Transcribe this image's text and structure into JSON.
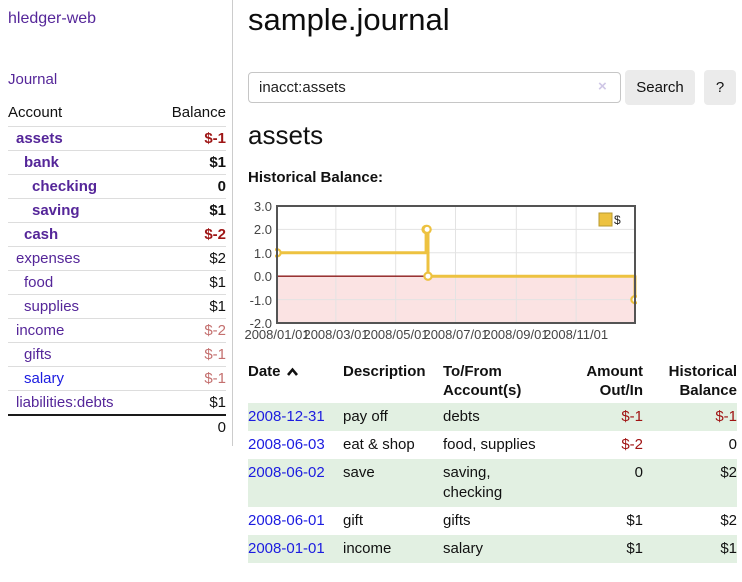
{
  "app": {
    "brand": "hledger-web",
    "nav_journal": "Journal"
  },
  "sidebar": {
    "headers": {
      "account": "Account",
      "balance": "Balance"
    },
    "accounts": [
      {
        "label": "assets",
        "indent": 1,
        "bold": true,
        "balance": "$-1"
      },
      {
        "label": "bank",
        "indent": 2,
        "bold": true,
        "balance": "$1"
      },
      {
        "label": "checking",
        "indent": 3,
        "bold": true,
        "balance": "0"
      },
      {
        "label": "saving",
        "indent": 3,
        "bold": true,
        "balance": "$1"
      },
      {
        "label": "cash",
        "indent": 2,
        "bold": true,
        "balance": "$-2"
      },
      {
        "label": "expenses",
        "indent": 1,
        "bold": false,
        "balance": "$2"
      },
      {
        "label": "food",
        "indent": 2,
        "bold": false,
        "balance": "$1"
      },
      {
        "label": "supplies",
        "indent": 2,
        "bold": false,
        "balance": "$1"
      },
      {
        "label": "income",
        "indent": 1,
        "bold": false,
        "balance": "$-2"
      },
      {
        "label": "gifts",
        "indent": 2,
        "bold": false,
        "balance": "$-1"
      },
      {
        "label": "salary",
        "indent": 2,
        "bold": false,
        "balance": "$-1",
        "unvisited": true
      },
      {
        "label": "liabilities:debts",
        "indent": 1,
        "bold": false,
        "balance": "$1"
      }
    ],
    "total": "0"
  },
  "header": {
    "title": "sample.journal"
  },
  "search": {
    "value": "inacct:assets",
    "clear_icon": "×",
    "button_label": "Search",
    "help_label": "?"
  },
  "account_page": {
    "heading": "assets",
    "chart_label": "Historical Balance:"
  },
  "chart_data": {
    "type": "line",
    "title": "Historical Balance",
    "step": true,
    "series": [
      {
        "name": "$",
        "color": "#edc240",
        "points": [
          [
            "2008-01-01",
            1
          ],
          [
            "2008-06-01",
            2
          ],
          [
            "2008-06-02",
            2
          ],
          [
            "2008-06-03",
            0
          ],
          [
            "2008-12-31",
            -1
          ]
        ]
      }
    ],
    "x_range": [
      "2008-01-01",
      "2008-12-31"
    ],
    "xticks": [
      "2008/01/01",
      "2008/03/01",
      "2008/05/01",
      "2008/07/01",
      "2008/09/01",
      "2008/11/01"
    ],
    "ytick_labels": [
      "3.0",
      "2.0",
      "1.0",
      "0.0",
      "-1.0",
      "-2.0"
    ],
    "ytick_values": [
      3,
      2,
      1,
      0,
      -1,
      -2
    ],
    "ylim": [
      -2,
      3
    ],
    "legend": {
      "label": "$",
      "position": "top-right"
    },
    "grid": true,
    "negative_region_color": "#fbe3e3",
    "zero_line_color": "#8b1a1a",
    "border_color": "#545454",
    "grid_color": "#e3e3e3"
  },
  "register": {
    "headers": {
      "date": "Date",
      "description": "Description",
      "accounts": "To/From\nAccount(s)",
      "amount": "Amount\nOut/In",
      "balance": "Historical\nBalance"
    },
    "rows": [
      {
        "date": "2008-12-31",
        "description": "pay off",
        "accounts": "debts",
        "amount": "$-1",
        "balance": "$-1"
      },
      {
        "date": "2008-06-03",
        "description": "eat & shop",
        "accounts": "food, supplies",
        "amount": "$-2",
        "balance": "0"
      },
      {
        "date": "2008-06-02",
        "description": "save",
        "accounts": "saving,\nchecking",
        "amount": "0",
        "balance": "$2"
      },
      {
        "date": "2008-06-01",
        "description": "gift",
        "accounts": "gifts",
        "amount": "$1",
        "balance": "$2"
      },
      {
        "date": "2008-01-01",
        "description": "income",
        "accounts": "salary",
        "amount": "$1",
        "balance": "$1"
      }
    ]
  },
  "colors": {
    "link_purple": "#552699",
    "link_blue": "#1c1ce0",
    "negative_bold": "#9e1616",
    "negative_faded": "#c4706f",
    "negative_table": "#a01313",
    "row_stripe_green": "#e2f0e2",
    "chart_line": "#edc240"
  }
}
